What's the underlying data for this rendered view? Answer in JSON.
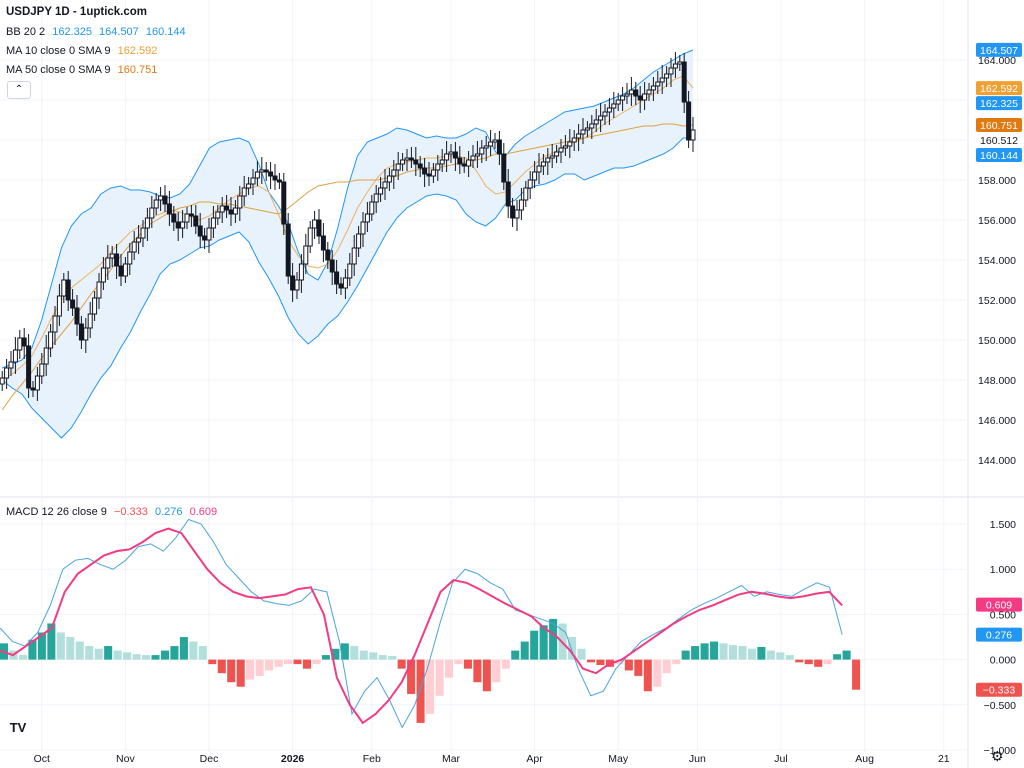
{
  "header": {
    "title": "USDJPY 1D - 1uptick.com",
    "bb": {
      "label": "BB 20 2",
      "v1": "162.325",
      "v2": "164.507",
      "v3": "160.144"
    },
    "ma10": {
      "label": "MA 10 close 0 SMA 9",
      "value": "162.592"
    },
    "ma50": {
      "label": "MA 50 close 0 SMA 9",
      "value": "160.751"
    },
    "collapse_icon": "chevron-up-icon"
  },
  "macd_legend": {
    "label": "MACD 12 26 close 9",
    "hist": "−0.333",
    "macd": "0.276",
    "signal": "0.609"
  },
  "price_badges": [
    {
      "text": "164.507",
      "value": 164.507,
      "color": "#2196f3"
    },
    {
      "text": "162.592",
      "value": 162.592,
      "color": "#f0a030"
    },
    {
      "text": "162.325",
      "value": 162.325,
      "color": "#2196f3"
    },
    {
      "text": "160.751",
      "value": 160.751,
      "color": "#e07a10"
    },
    {
      "text": "160.512",
      "value": 160.512,
      "color": "#ffffff"
    },
    {
      "text": "160.144",
      "value": 160.144,
      "color": "#2196f3"
    }
  ],
  "macd_badges": [
    {
      "text": "0.609",
      "value": 0.609,
      "color": "#f23b83"
    },
    {
      "text": "0.276",
      "value": 0.276,
      "color": "#2196f3"
    },
    {
      "text": "−0.333",
      "value": -0.333,
      "color": "#ef5350"
    }
  ],
  "colors": {
    "bb_line": "#2196f3",
    "bb_fill": "#e3f0fc",
    "ma10": "#f0b060",
    "ma50": "#e0a040",
    "macd_line": "#4aa3df",
    "signal_line": "#f23b83",
    "hist_up_strong": "#26a69a",
    "hist_up_weak": "#b2dfdb",
    "hist_down_strong": "#ef5350",
    "hist_down_weak": "#ffcdd2",
    "candle": "#131722",
    "grid": "#f0f3fa"
  },
  "chart_data": [
    {
      "type": "candlestick",
      "ylim": [
        143,
        165.5
      ],
      "y_ticks": [
        "164.000",
        "162.000",
        "160.000",
        "158.000",
        "156.000",
        "154.000",
        "152.000",
        "150.000",
        "148.000",
        "146.000",
        "144.000"
      ],
      "x_ticks": [
        "Oct",
        "Nov",
        "Dec",
        "2026",
        "Feb",
        "Mar",
        "Apr",
        "May",
        "Jun",
        "Jul",
        "Aug",
        "21"
      ],
      "x_tick_bars": [
        9,
        28,
        47,
        66,
        84,
        102,
        121,
        140,
        158,
        177,
        196,
        214
      ],
      "closes": [
        148.1,
        148.6,
        148.9,
        149.5,
        150.1,
        149.7,
        147.6,
        147.5,
        148.2,
        148.8,
        149.6,
        150.4,
        151.2,
        152.2,
        153.0,
        152.0,
        151.6,
        150.8,
        150.0,
        150.6,
        151.3,
        152.1,
        152.9,
        153.6,
        154.1,
        154.3,
        153.7,
        153.2,
        153.8,
        154.4,
        154.9,
        155.1,
        155.6,
        156.1,
        156.6,
        157.0,
        157.2,
        156.8,
        156.3,
        155.9,
        155.6,
        155.9,
        156.3,
        156.2,
        155.7,
        155.2,
        155.0,
        155.6,
        156.1,
        156.4,
        156.7,
        156.5,
        156.3,
        156.6,
        157.2,
        157.6,
        157.8,
        158.1,
        158.4,
        158.5,
        158.4,
        158.2,
        158.0,
        157.9,
        155.8,
        153.2,
        152.5,
        153.0,
        153.8,
        154.7,
        155.6,
        156.0,
        155.2,
        154.5,
        154.0,
        153.4,
        152.8,
        152.6,
        153.1,
        153.8,
        154.6,
        155.3,
        155.9,
        156.3,
        156.9,
        157.3,
        157.6,
        157.9,
        158.2,
        158.5,
        158.8,
        159.0,
        159.1,
        159.0,
        158.8,
        158.6,
        158.3,
        158.2,
        158.5,
        158.8,
        159.0,
        159.3,
        159.4,
        159.1,
        158.8,
        158.7,
        159.0,
        159.2,
        159.3,
        159.6,
        159.7,
        159.9,
        160.0,
        159.3,
        157.9,
        156.7,
        156.1,
        156.5,
        157.0,
        157.6,
        158.0,
        158.4,
        158.7,
        158.9,
        159.1,
        159.2,
        159.4,
        159.6,
        159.7,
        159.9,
        160.1,
        160.3,
        160.5,
        160.6,
        160.8,
        161.0,
        161.2,
        161.4,
        161.6,
        161.8,
        162.0,
        162.2,
        162.3,
        162.5,
        162.2,
        162.0,
        162.3,
        162.5,
        162.7,
        162.9,
        163.1,
        163.3,
        163.6,
        163.8,
        163.9,
        161.9,
        160.0,
        160.5
      ],
      "bb_upper": [
        148.6,
        148.8,
        149.0,
        149.6,
        151.0,
        152.8,
        154.6,
        155.7,
        156.3,
        156.6,
        157.3,
        157.6,
        157.7,
        157.5,
        157.5,
        157.4,
        157.2,
        157.1,
        157.3,
        157.8,
        158.7,
        159.6,
        159.9,
        160.0,
        160.1,
        159.9,
        158.8,
        157.4,
        156.7,
        155.8,
        154.4,
        153.3,
        153.0,
        153.9,
        155.6,
        157.6,
        159.2,
        159.9,
        160.1,
        160.3,
        160.6,
        160.5,
        160.3,
        160.1,
        160.2,
        160.1,
        160.1,
        160.3,
        160.6,
        160.4,
        159.4,
        159.2,
        159.8,
        160.2,
        160.5,
        160.8,
        161.1,
        161.4,
        161.5,
        161.6,
        161.7,
        161.9,
        162.1,
        162.3,
        162.6,
        163.0,
        163.4,
        163.7,
        164.0,
        164.3,
        164.5
      ],
      "bb_lower": [
        148.0,
        147.6,
        147.3,
        146.6,
        146.1,
        145.6,
        145.1,
        145.6,
        146.4,
        147.3,
        148.1,
        148.7,
        149.6,
        150.4,
        151.4,
        152.3,
        153.3,
        153.8,
        154.0,
        154.3,
        154.6,
        154.7,
        155.0,
        155.2,
        155.4,
        154.9,
        153.9,
        153.1,
        152.2,
        151.1,
        150.3,
        149.8,
        150.2,
        150.8,
        151.2,
        151.9,
        152.7,
        153.6,
        154.5,
        155.4,
        156.1,
        156.6,
        156.9,
        157.2,
        157.3,
        157.2,
        157.0,
        156.3,
        155.9,
        155.7,
        156.1,
        156.8,
        157.0,
        157.5,
        157.7,
        157.8,
        158.0,
        158.3,
        158.3,
        158.0,
        158.2,
        158.4,
        158.6,
        158.6,
        158.7,
        158.9,
        159.1,
        159.3,
        159.6,
        160.1,
        160.1
      ],
      "ma10": [
        148.0,
        148.3,
        148.7,
        149.2,
        150.1,
        151.1,
        152.0,
        152.6,
        153.0,
        153.4,
        153.8,
        154.4,
        154.9,
        155.4,
        155.7,
        156.1,
        156.3,
        156.5,
        156.4,
        156.2,
        156.0,
        156.2,
        156.6,
        157.0,
        157.3,
        157.6,
        157.7,
        157.4,
        156.3,
        155.0,
        154.2,
        153.7,
        153.6,
        153.8,
        154.5,
        155.5,
        156.6,
        157.4,
        158.1,
        158.6,
        158.8,
        158.9,
        159.0,
        159.1,
        159.1,
        159.2,
        159.2,
        159.1,
        158.5,
        157.7,
        157.3,
        157.4,
        157.9,
        158.4,
        158.8,
        159.2,
        159.4,
        159.7,
        159.9,
        160.1,
        160.4,
        160.8,
        161.1,
        161.4,
        161.7,
        162.0,
        162.3,
        162.6,
        163.0,
        163.2,
        162.6
      ],
      "ma50": [
        146.5,
        147.2,
        147.8,
        148.4,
        149.1,
        149.7,
        150.3,
        150.9,
        151.6,
        152.3,
        152.9,
        153.5,
        154.2,
        154.8,
        155.3,
        155.8,
        156.1,
        156.4,
        156.6,
        156.7,
        156.9,
        156.9,
        156.8,
        156.8,
        156.7,
        156.6,
        156.5,
        156.4,
        156.3,
        156.6,
        157.0,
        157.4,
        157.7,
        157.8,
        157.9,
        157.9,
        158.0,
        158.0,
        158.0,
        158.1,
        158.2,
        158.4,
        158.5,
        158.6,
        158.6,
        158.7,
        158.8,
        158.9,
        159.0,
        159.1,
        159.3,
        159.3,
        159.4,
        159.5,
        159.6,
        159.7,
        159.8,
        159.9,
        160.0,
        160.1,
        160.2,
        160.3,
        160.4,
        160.5,
        160.6,
        160.7,
        160.7,
        160.8,
        160.8,
        160.7,
        160.75
      ]
    },
    {
      "type": "macd",
      "ylim": [
        -1.0,
        1.6
      ],
      "y_ticks": [
        "1.500",
        "1.000",
        "0.500",
        "0.000",
        "−0.500",
        "−1.000"
      ],
      "macd": [
        0.35,
        0.2,
        0.15,
        0.3,
        0.6,
        1.0,
        1.1,
        1.12,
        1.05,
        1.0,
        1.1,
        1.25,
        1.28,
        1.2,
        1.35,
        1.55,
        1.5,
        1.3,
        1.05,
        0.9,
        0.75,
        0.65,
        0.62,
        0.6,
        0.65,
        0.78,
        0.75,
        0.2,
        -0.6,
        -0.35,
        -0.2,
        -0.45,
        -0.75,
        -0.5,
        -0.1,
        0.4,
        0.85,
        1.0,
        0.95,
        0.85,
        0.78,
        0.55,
        0.5,
        0.45,
        0.4,
        0.3,
        -0.1,
        -0.4,
        -0.35,
        -0.1,
        0.05,
        0.2,
        0.28,
        0.35,
        0.45,
        0.55,
        0.62,
        0.68,
        0.75,
        0.82,
        0.7,
        0.75,
        0.72,
        0.7,
        0.78,
        0.85,
        0.8,
        0.276
      ],
      "signal": [
        0.1,
        0.05,
        0.15,
        0.25,
        0.35,
        0.75,
        0.95,
        1.05,
        1.15,
        1.2,
        1.22,
        1.3,
        1.4,
        1.45,
        1.4,
        1.2,
        1.0,
        0.85,
        0.75,
        0.7,
        0.68,
        0.7,
        0.72,
        0.78,
        0.8,
        0.5,
        -0.2,
        -0.5,
        -0.7,
        -0.6,
        -0.45,
        -0.25,
        0.05,
        0.4,
        0.75,
        0.88,
        0.85,
        0.78,
        0.7,
        0.62,
        0.55,
        0.48,
        0.35,
        0.25,
        0.1,
        -0.1,
        -0.15,
        -0.05,
        0.0,
        0.1,
        0.2,
        0.3,
        0.4,
        0.48,
        0.55,
        0.6,
        0.66,
        0.72,
        0.75,
        0.73,
        0.7,
        0.68,
        0.7,
        0.73,
        0.75,
        0.6
      ],
      "histogram": [
        0.18,
        0.1,
        0.05,
        0.22,
        0.3,
        0.4,
        0.3,
        0.25,
        0.2,
        0.15,
        0.12,
        0.15,
        0.1,
        0.08,
        0.06,
        0.05,
        0.05,
        0.1,
        0.15,
        0.25,
        0.2,
        0.15,
        -0.05,
        -0.15,
        -0.25,
        -0.3,
        -0.22,
        -0.18,
        -0.12,
        -0.08,
        -0.05,
        -0.05,
        -0.1,
        -0.05,
        0.05,
        0.12,
        0.18,
        0.15,
        0.1,
        0.08,
        0.05,
        0.04,
        -0.1,
        -0.38,
        -0.7,
        -0.6,
        -0.4,
        -0.2,
        -0.05,
        -0.1,
        -0.25,
        -0.35,
        -0.25,
        -0.1,
        0.1,
        0.2,
        0.32,
        0.38,
        0.45,
        0.4,
        0.25,
        0.12,
        -0.03,
        -0.06,
        -0.08,
        -0.05,
        -0.12,
        -0.18,
        -0.35,
        -0.3,
        -0.15,
        -0.05,
        0.1,
        0.15,
        0.18,
        0.2,
        0.18,
        0.16,
        0.15,
        0.12,
        0.14,
        0.1,
        0.08,
        0.05,
        -0.03,
        -0.05,
        -0.08,
        -0.05,
        0.06,
        0.1,
        -0.333
      ]
    }
  ]
}
